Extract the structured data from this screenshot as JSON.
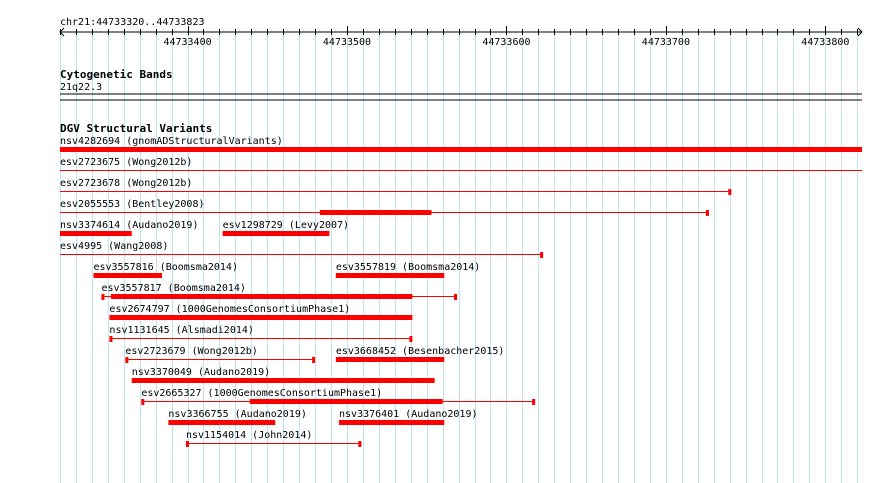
{
  "ruler": {
    "locus": "chr21:44733320..44733823",
    "start": 44733320,
    "end": 44733823,
    "ticks": [
      "44733400",
      "44733500",
      "44733600",
      "44733700",
      "44733800"
    ]
  },
  "cytoband": {
    "title": "Cytogenetic Bands",
    "band": "21q22.3"
  },
  "dgv": {
    "title": "DGV Structural Variants",
    "color": "#ff0000",
    "variants": [
      {
        "name": "nsv4282694 (gnomADStructuralVariants)",
        "start": 44733320,
        "end": 44733823,
        "row": 0,
        "style": "thick"
      },
      {
        "name": "esv2723675 (Wong2012b)",
        "start": 44733320,
        "end": 44733823,
        "row": 1,
        "style": "thin"
      },
      {
        "name": "esv2723678 (Wong2012b)",
        "start": 44733320,
        "end": 44733741,
        "row": 2,
        "style": "thin"
      },
      {
        "name": "esv2055553 (Bentley2008)",
        "start": 44733320,
        "end": 44733727,
        "row": 3,
        "style": "thin",
        "thick_start": 44733483,
        "thick_end": 44733553
      },
      {
        "name": "nsv3374614 (Audano2019)",
        "start": 44733320,
        "end": 44733365,
        "row": 4,
        "style": "thick"
      },
      {
        "name": "esv1298729 (Levy2007)",
        "start": 44733422,
        "end": 44733489,
        "row": 4,
        "style": "thick"
      },
      {
        "name": "esv4995 (Wang2008)",
        "start": 44733320,
        "end": 44733623,
        "row": 5,
        "style": "thin"
      },
      {
        "name": "esv3557816 (Boomsma2014)",
        "start": 44733341,
        "end": 44733384,
        "row": 6,
        "style": "thick"
      },
      {
        "name": "esv3557819 (Boomsma2014)",
        "start": 44733493,
        "end": 44733561,
        "row": 6,
        "style": "thick"
      },
      {
        "name": "esv3557817 (Boomsma2014)",
        "start": 44733346,
        "end": 44733569,
        "row": 7,
        "style": "thin",
        "thick_start": 44733352,
        "thick_end": 44733541
      },
      {
        "name": "esv2674797 (1000GenomesConsortiumPhase1)",
        "start": 44733351,
        "end": 44733541,
        "row": 8,
        "style": "thick"
      },
      {
        "name": "nsv1131645 (Alsmadi2014)",
        "start": 44733351,
        "end": 44733541,
        "row": 9,
        "style": "thin"
      },
      {
        "name": "esv2723679 (Wong2012b)",
        "start": 44733361,
        "end": 44733480,
        "row": 10,
        "style": "thin"
      },
      {
        "name": "esv3668452 (Besenbacher2015)",
        "start": 44733493,
        "end": 44733561,
        "row": 10,
        "style": "thick"
      },
      {
        "name": "nsv3370049 (Audano2019)",
        "start": 44733365,
        "end": 44733555,
        "row": 11,
        "style": "thick"
      },
      {
        "name": "esv2665327 (1000GenomesConsortiumPhase1)",
        "start": 44733371,
        "end": 44733618,
        "row": 12,
        "style": "thin",
        "thick_start": 44733439,
        "thick_end": 44733560
      },
      {
        "name": "nsv3366755 (Audano2019)",
        "start": 44733388,
        "end": 44733455,
        "row": 13,
        "style": "thick"
      },
      {
        "name": "nsv3376401 (Audano2019)",
        "start": 44733495,
        "end": 44733561,
        "row": 13,
        "style": "thick"
      },
      {
        "name": "nsv1154014 (John2014)",
        "start": 44733399,
        "end": 44733509,
        "row": 14,
        "style": "thin"
      }
    ]
  }
}
